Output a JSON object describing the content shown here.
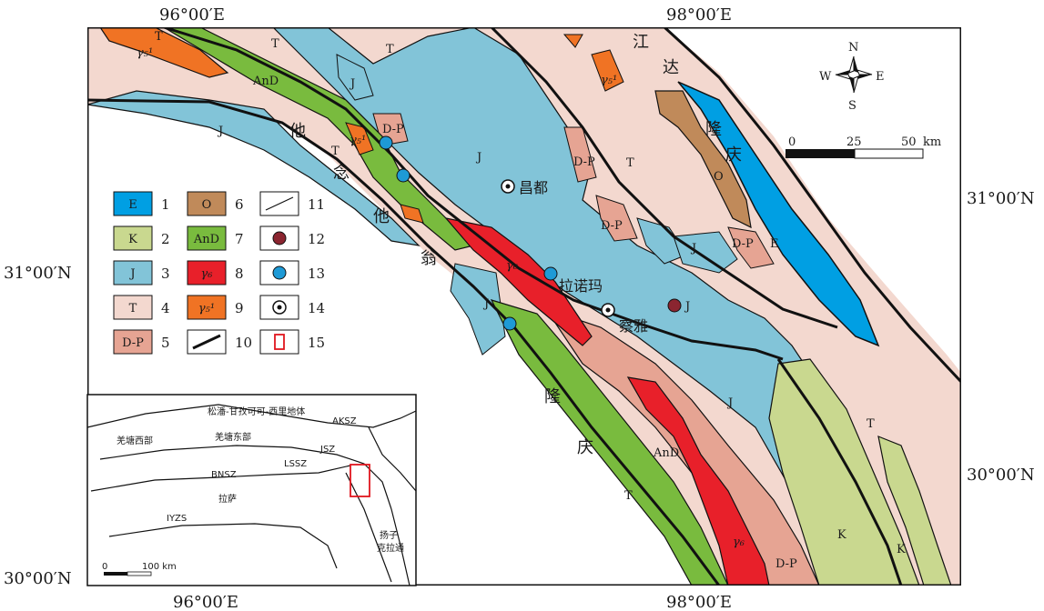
{
  "coordinates": {
    "top_left_lon": "96°00′E",
    "top_right_lon": "98°00′E",
    "bottom_left_lon": "96°00′E",
    "bottom_right_lon": "98°00′E",
    "left_upper_lat": "31°00′N",
    "left_lower_lat": "30°00′N",
    "right_upper_lat": "31°00′N",
    "right_lower_lat": "30°00′N"
  },
  "compass": {
    "north": "N",
    "south": "S",
    "east": "E",
    "west": "W"
  },
  "scale_bar": {
    "tick_0": "0",
    "tick_1": "25",
    "tick_2": "50",
    "unit": "km"
  },
  "units": {
    "T_nw": "T",
    "T_n1": "T",
    "T_n2": "T",
    "T_central": "T",
    "T_left": "T",
    "T_east": "T",
    "T_south": "T",
    "J_main": "J",
    "J_west": "J",
    "J_small": "J",
    "J_mid": "J",
    "J_east_isle": "J",
    "J_sw": "J",
    "J_se": "J",
    "J_dot": "J",
    "AnD_nw": "AnD",
    "AnD_s": "AnD",
    "DP_nw": "D-P",
    "DP_ne": "D-P",
    "DP_mid": "D-P",
    "DP_east": "D-P",
    "DP_s": "D-P",
    "O_ne": "O",
    "E_ne": "E",
    "K_se1": "K",
    "K_se2": "K",
    "g5_nw": "γ₅¹",
    "g5_ne": "γ₅¹",
    "g5_mid": "γ₅¹",
    "g6_mid": "γ₆",
    "g6_s": "γ₆"
  },
  "belts": {
    "tanian_1": "他",
    "tanian_2": "念",
    "tanian_3": "他",
    "tanian_4": "翁",
    "jiangda_1": "江",
    "jiangda_2": "达",
    "longqing_n1": "隆",
    "longqing_n2": "庆",
    "longqing_s1": "隆",
    "longqing_s2": "庆"
  },
  "towns": {
    "changdu": "昌都",
    "lanuoma": "拉诺玛",
    "chaya": "察雅"
  },
  "legend": [
    {
      "code": "E",
      "num": "1",
      "color": "#009fe3"
    },
    {
      "code": "K",
      "num": "2",
      "color": "#c9d88f"
    },
    {
      "code": "J",
      "num": "3",
      "color": "#82c4d8"
    },
    {
      "code": "T",
      "num": "4",
      "color": "#f3d8cf"
    },
    {
      "code": "D-P",
      "num": "5",
      "color": "#e6a493"
    },
    {
      "code": "O",
      "num": "6",
      "color": "#c08a5a"
    },
    {
      "code": "AnD",
      "num": "7",
      "color": "#79bb3e"
    },
    {
      "code": "γ₆",
      "num": "8",
      "color": "#e8202a"
    },
    {
      "code": "γ₅¹",
      "num": "9",
      "color": "#f07324"
    },
    {
      "code": "",
      "num": "10",
      "symbol": "thick-fault"
    },
    {
      "code": "",
      "num": "11",
      "symbol": "thin-fault"
    },
    {
      "code": "",
      "num": "12",
      "symbol": "maroon-dot",
      "color": "#8b2530"
    },
    {
      "code": "",
      "num": "13",
      "symbol": "blue-dot",
      "color": "#1e9ad6"
    },
    {
      "code": "",
      "num": "14",
      "symbol": "town"
    },
    {
      "code": "",
      "num": "15",
      "symbol": "study-area",
      "color": "#e0161e"
    }
  ],
  "inset": {
    "songpan": "松潘-甘孜可可-西里地体",
    "aksz": "AKSZ",
    "qiangtang_west": "羌塘西部",
    "qiangtang_east": "羌塘东部",
    "jsz": "JSZ",
    "lssz": "LSSZ",
    "bnsz": "BNSZ",
    "lasa": "拉萨",
    "iyzs": "IYZS",
    "yangtze_1": "扬子",
    "yangtze_2": "克拉通",
    "scale_0": "0",
    "scale_100": "100 km"
  }
}
